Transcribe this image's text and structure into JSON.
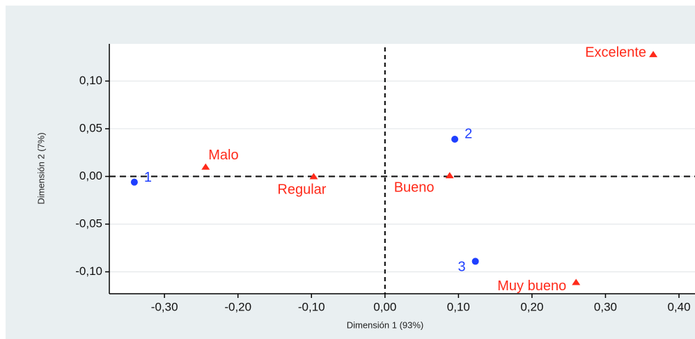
{
  "chart_data": {
    "type": "scatter",
    "x_label": "Dimensión 1 (93%)",
    "y_label": "Dimensión 2 (7%)",
    "xlim": [
      -0.375,
      0.4
    ],
    "ylim": [
      -0.123,
      0.139
    ],
    "xticks": [
      {
        "value": -0.3,
        "label": "-0,30"
      },
      {
        "value": -0.2,
        "label": "-0,20"
      },
      {
        "value": -0.1,
        "label": "-0,10"
      },
      {
        "value": 0,
        "label": "0,00"
      },
      {
        "value": 0.1,
        "label": "0,10"
      },
      {
        "value": 0.2,
        "label": "0,20"
      },
      {
        "value": 0.3,
        "label": "0,30"
      },
      {
        "value": 0.4,
        "label": "0,40"
      }
    ],
    "yticks": [
      {
        "value": 0.1,
        "label": "0,10"
      },
      {
        "value": 0.05,
        "label": "0,05"
      },
      {
        "value": 0,
        "label": "0,00"
      },
      {
        "value": -0.05,
        "label": "-0,05"
      },
      {
        "value": -0.1,
        "label": "-0,10"
      }
    ],
    "grid": true,
    "series": [
      {
        "color": "#1f3fff",
        "marker": "circle",
        "labels": [
          "1",
          "2",
          "3"
        ],
        "x": [
          -0.341,
          0.095,
          0.123
        ],
        "values": [
          -0.006,
          0.039,
          -0.089
        ]
      },
      {
        "color": "#ff2a1a",
        "marker": "triangle",
        "labels": [
          "Malo",
          "Regular",
          "Bueno",
          "Excelente",
          "Muy bueno"
        ],
        "x": [
          -0.244,
          -0.097,
          0.088,
          0.365,
          0.26
        ],
        "values": [
          0.01,
          0.0,
          0.001,
          0.128,
          -0.111
        ]
      }
    ]
  }
}
